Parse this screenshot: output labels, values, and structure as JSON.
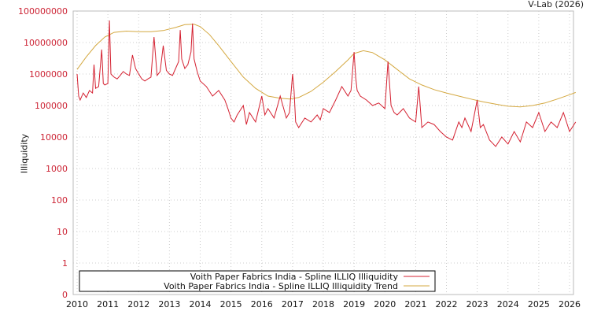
{
  "credit": "V-Lab (2026)",
  "chart_data": {
    "type": "line",
    "title": "",
    "xlabel": "",
    "ylabel": "Illiquidity",
    "yscale": "log",
    "ylim": [
      1,
      100000000
    ],
    "xlim": [
      2010,
      2026.2
    ],
    "grid": true,
    "legend_position": "bottom-left",
    "x_ticks": [
      "2010",
      "2011",
      "2012",
      "2013",
      "2014",
      "2015",
      "2016",
      "2017",
      "2018",
      "2019",
      "2020",
      "2021",
      "2022",
      "2023",
      "2024",
      "2025",
      "2026"
    ],
    "y_ticks": [
      "100000000",
      "10000000",
      "1000000",
      "100000",
      "10000",
      "1000",
      "100",
      "10",
      "1",
      "0"
    ],
    "colors": {
      "illiquidity": "#d42030",
      "trend": "#d4a840",
      "grid": "#cccccc",
      "axis": "#bbbbbb"
    },
    "series": [
      {
        "name": "Voith Paper Fabrics India - Spline ILLIQ Illiquidity",
        "color": "#d42030",
        "x": [
          2010.0,
          2010.05,
          2010.1,
          2010.2,
          2010.3,
          2010.4,
          2010.5,
          2010.55,
          2010.6,
          2010.7,
          2010.8,
          2010.85,
          2010.9,
          2011.0,
          2011.05,
          2011.1,
          2011.2,
          2011.3,
          2011.4,
          2011.5,
          2011.6,
          2011.7,
          2011.8,
          2011.9,
          2012.0,
          2012.1,
          2012.2,
          2012.3,
          2012.4,
          2012.5,
          2012.6,
          2012.7,
          2012.8,
          2012.9,
          2013.0,
          2013.1,
          2013.2,
          2013.3,
          2013.35,
          2013.4,
          2013.5,
          2013.6,
          2013.7,
          2013.75,
          2013.8,
          2013.9,
          2014.0,
          2014.2,
          2014.4,
          2014.6,
          2014.8,
          2014.9,
          2015.0,
          2015.1,
          2015.2,
          2015.4,
          2015.5,
          2015.6,
          2015.8,
          2016.0,
          2016.1,
          2016.2,
          2016.4,
          2016.6,
          2016.8,
          2016.9,
          2017.0,
          2017.05,
          2017.1,
          2017.2,
          2017.4,
          2017.6,
          2017.8,
          2017.9,
          2018.0,
          2018.2,
          2018.4,
          2018.6,
          2018.8,
          2018.9,
          2019.0,
          2019.05,
          2019.1,
          2019.2,
          2019.4,
          2019.6,
          2019.8,
          2020.0,
          2020.1,
          2020.2,
          2020.3,
          2020.4,
          2020.6,
          2020.8,
          2021.0,
          2021.1,
          2021.2,
          2021.4,
          2021.6,
          2021.8,
          2022.0,
          2022.2,
          2022.4,
          2022.5,
          2022.6,
          2022.8,
          2023.0,
          2023.1,
          2023.2,
          2023.4,
          2023.6,
          2023.8,
          2024.0,
          2024.2,
          2024.4,
          2024.6,
          2024.8,
          2025.0,
          2025.2,
          2025.4,
          2025.6,
          2025.8,
          2026.0,
          2026.2
        ],
        "y": [
          1000000,
          200000,
          150000,
          250000,
          180000,
          300000,
          250000,
          2000000,
          350000,
          400000,
          6000000,
          500000,
          450000,
          500000,
          50000000,
          1000000,
          800000,
          700000,
          900000,
          1200000,
          1000000,
          900000,
          4000000,
          1500000,
          1000000,
          700000,
          600000,
          700000,
          800000,
          15000000,
          900000,
          1200000,
          8000000,
          1300000,
          1000000,
          900000,
          1500000,
          2500000,
          25000000,
          3000000,
          1500000,
          2000000,
          5000000,
          40000000,
          3000000,
          1200000,
          600000,
          400000,
          200000,
          300000,
          150000,
          80000,
          40000,
          30000,
          50000,
          100000,
          25000,
          60000,
          30000,
          200000,
          50000,
          80000,
          40000,
          200000,
          40000,
          60000,
          1000000,
          300000,
          30000,
          20000,
          40000,
          30000,
          50000,
          35000,
          80000,
          60000,
          150000,
          400000,
          200000,
          300000,
          5000000,
          800000,
          300000,
          200000,
          150000,
          100000,
          120000,
          80000,
          2500000,
          100000,
          60000,
          50000,
          80000,
          40000,
          30000,
          400000,
          20000,
          30000,
          25000,
          15000,
          10000,
          8000,
          30000,
          20000,
          40000,
          15000,
          150000,
          20000,
          25000,
          8000,
          5000,
          10000,
          6000,
          15000,
          7000,
          30000,
          20000,
          60000,
          15000,
          30000,
          20000,
          60000,
          15000,
          30000
        ]
      },
      {
        "name": "Voith Paper Fabrics India - Spline ILLIQ Illiquidity Trend",
        "color": "#d4a840",
        "x": [
          2010.0,
          2010.3,
          2010.6,
          2010.9,
          2011.2,
          2011.6,
          2012.0,
          2012.4,
          2012.8,
          2013.2,
          2013.5,
          2013.8,
          2014.0,
          2014.3,
          2014.6,
          2015.0,
          2015.4,
          2015.8,
          2016.2,
          2016.6,
          2016.9,
          2017.2,
          2017.6,
          2018.0,
          2018.4,
          2018.8,
          2019.0,
          2019.3,
          2019.6,
          2020.0,
          2020.4,
          2020.8,
          2021.2,
          2021.6,
          2022.0,
          2022.4,
          2022.8,
          2023.2,
          2023.6,
          2024.0,
          2024.4,
          2024.8,
          2025.2,
          2025.6,
          2026.0,
          2026.2
        ],
        "y": [
          1400000,
          3500000,
          8000000,
          15000000,
          21000000,
          23000000,
          22000000,
          22000000,
          24000000,
          30000000,
          37000000,
          38000000,
          32000000,
          18000000,
          8000000,
          2500000,
          800000,
          350000,
          200000,
          170000,
          160000,
          180000,
          280000,
          550000,
          1200000,
          2800000,
          4500000,
          5500000,
          4800000,
          2800000,
          1400000,
          700000,
          450000,
          320000,
          250000,
          200000,
          160000,
          130000,
          110000,
          95000,
          90000,
          100000,
          120000,
          160000,
          220000,
          260000
        ]
      }
    ]
  },
  "legend": {
    "items": [
      {
        "label": "Voith Paper Fabrics India - Spline ILLIQ Illiquidity",
        "color": "#d42030"
      },
      {
        "label": "Voith Paper Fabrics India - Spline ILLIQ Illiquidity Trend",
        "color": "#d4a840"
      }
    ]
  }
}
